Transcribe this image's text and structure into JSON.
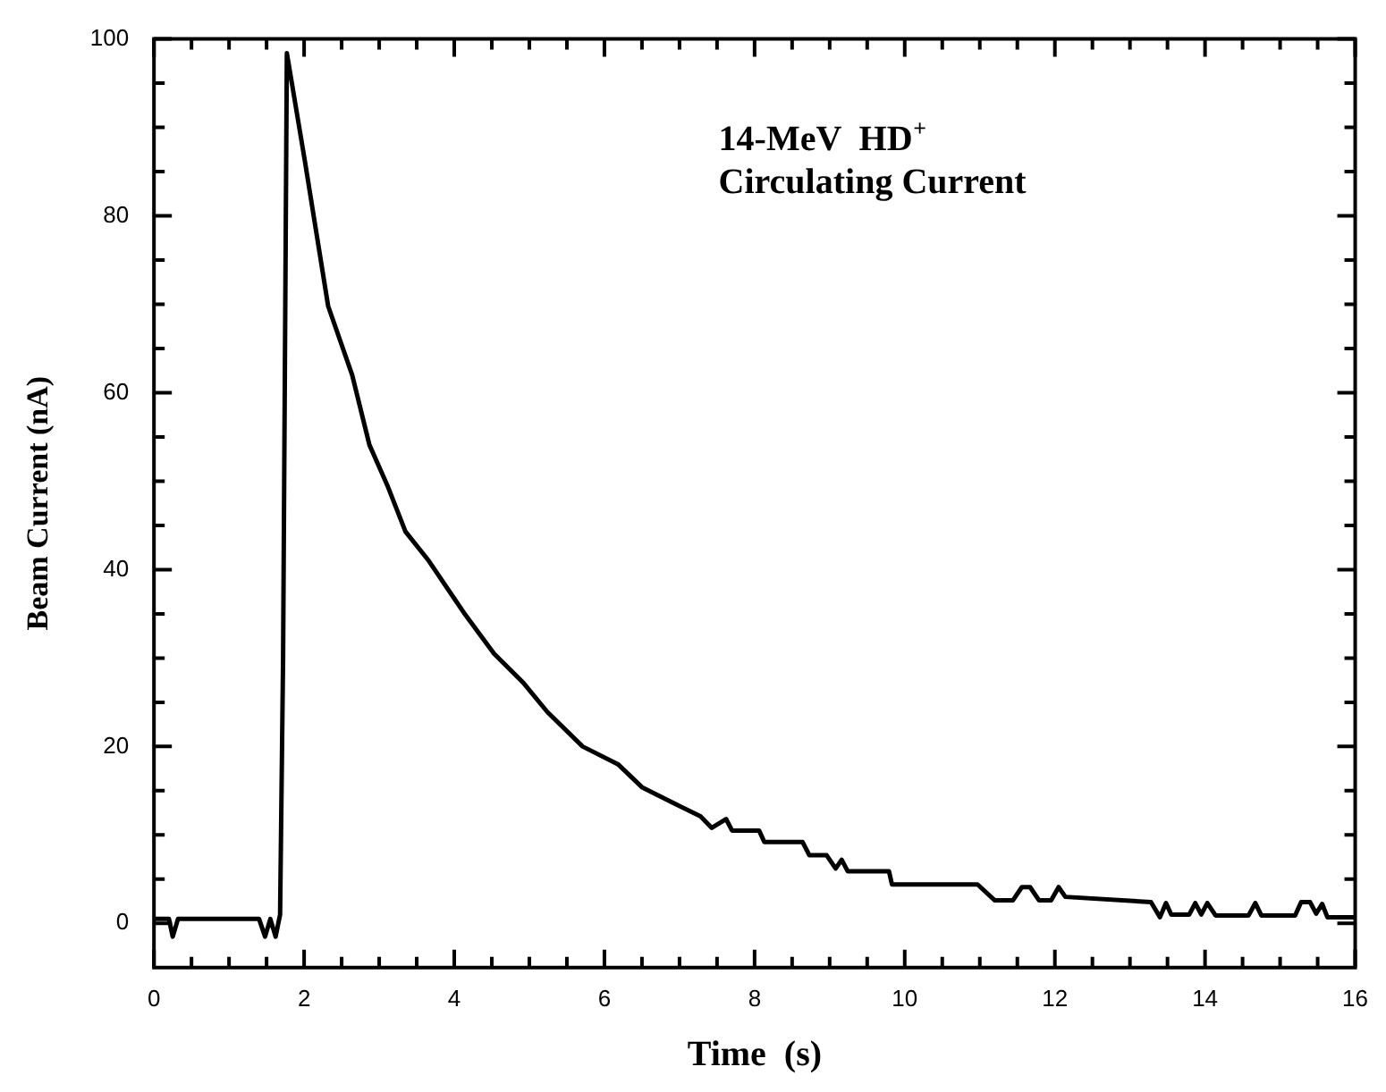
{
  "chart_data": {
    "type": "line",
    "xlabel": "Time  (s)",
    "ylabel": "Beam Current (nA)",
    "annotations": [
      "14-MeV  HD$^{+}$",
      "Circulating Current"
    ],
    "series": [
      {
        "color": "#000000",
        "x": [
          0,
          0.2,
          0.25,
          0.32,
          1.4,
          1.48,
          1.55,
          1.62,
          1.68,
          1.72,
          1.77,
          2.01,
          2.32,
          2.64,
          2.87,
          3.11,
          3.35,
          3.66,
          4.13,
          4.53,
          4.92,
          5.24,
          5.71,
          6.18,
          6.5,
          6.97,
          7.28,
          7.43,
          7.62,
          7.7,
          8.06,
          8.13,
          8.64,
          8.73,
          8.96,
          9.08,
          9.16,
          9.24,
          9.79,
          9.83,
          10.97,
          11.2,
          11.44,
          11.56,
          11.67,
          11.79,
          11.95,
          12.05,
          12.14,
          13.28,
          13.4,
          13.48,
          13.55,
          13.79,
          13.87,
          13.95,
          14.03,
          14.14,
          14.58,
          14.67,
          14.75,
          15.2,
          15.28,
          15.4,
          15.48,
          15.56,
          15.63,
          16
        ],
        "values": [
          0.5,
          0.5,
          -1.5,
          0.5,
          0.5,
          -1.5,
          0.5,
          -1.5,
          1,
          30,
          98.4,
          86.2,
          69.8,
          62,
          54.1,
          49.5,
          44.3,
          41,
          35.1,
          30.5,
          27.2,
          23.9,
          20,
          18,
          15.4,
          13.4,
          12.1,
          10.8,
          11.8,
          10.5,
          10.5,
          9.2,
          9.2,
          7.7,
          7.7,
          6.2,
          7.2,
          5.9,
          5.9,
          4.4,
          4.4,
          2.6,
          2.6,
          4.1,
          4.1,
          2.6,
          2.6,
          4.1,
          3,
          2.4,
          0.7,
          2.3,
          1,
          1,
          2.3,
          1,
          2.3,
          0.9,
          0.9,
          2.3,
          0.9,
          0.9,
          2.4,
          2.4,
          1.1,
          2.2,
          0.7,
          0.7
        ]
      }
    ],
    "marker": "none",
    "line_style": "solid",
    "grid": false,
    "legend": false,
    "xlim": [
      0,
      16
    ],
    "ylim": [
      -5,
      100
    ],
    "xticks": [
      0,
      {
        "value": 0.5,
        "label": null
      },
      2,
      {
        "value": 1,
        "label": null
      },
      {
        "value": 1.5,
        "label": null
      },
      {
        "value": 2.5,
        "label": null
      },
      {
        "value": 3,
        "label": null
      },
      {
        "value": 3.5,
        "label": null
      },
      4,
      {
        "value": 4.5,
        "label": null
      },
      {
        "value": 5,
        "label": null
      },
      {
        "value": 5.5,
        "label": null
      },
      6,
      {
        "value": 6.5,
        "label": null
      },
      {
        "value": 7,
        "label": null
      },
      {
        "value": 7.5,
        "label": null
      },
      8,
      {
        "value": 8.5,
        "label": null
      },
      {
        "value": 9,
        "label": null
      },
      {
        "value": 9.5,
        "label": null
      },
      10,
      {
        "value": 10.5,
        "label": null
      },
      {
        "value": 11,
        "label": null
      },
      {
        "value": 11.5,
        "label": null
      },
      12,
      {
        "value": 12.5,
        "label": null
      },
      {
        "value": 13,
        "label": null
      },
      {
        "value": 13.5,
        "label": null
      },
      14,
      {
        "value": 14.5,
        "label": null
      },
      {
        "value": 15,
        "label": null
      },
      {
        "value": 15.5,
        "label": null
      },
      16
    ],
    "yticks": [
      0,
      {
        "value": 5,
        "label": null
      },
      {
        "value": 10,
        "label": null
      },
      {
        "value": 15,
        "label": null
      },
      20,
      {
        "value": 25,
        "label": null
      },
      {
        "value": 30,
        "label": null
      },
      {
        "value": 35,
        "label": null
      },
      40,
      {
        "value": 45,
        "label": null
      },
      {
        "value": 50,
        "label": null
      },
      {
        "value": 55,
        "label": null
      },
      60,
      {
        "value": 65,
        "label": null
      },
      {
        "value": 70,
        "label": null
      },
      {
        "value": 75,
        "label": null
      },
      80,
      {
        "value": 85,
        "label": null
      },
      {
        "value": 90,
        "label": null
      },
      {
        "value": 95,
        "label": null
      },
      100
    ]
  }
}
